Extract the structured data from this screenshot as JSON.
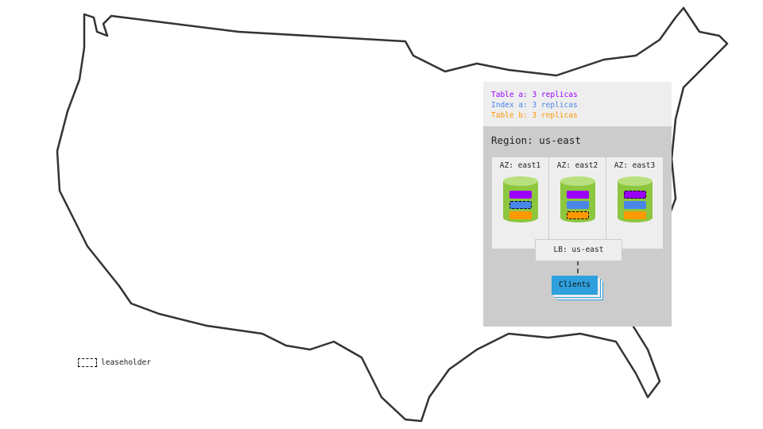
{
  "legend": {
    "table_a": "Table a: 3 replicas",
    "index_a": "Index a: 3 replicas",
    "table_b": "Table b: 3 replicas"
  },
  "colors": {
    "table_a": "#9b00ff",
    "index_a": "#4a86e8",
    "table_b": "#ff9900",
    "db": "#8dc63f",
    "clients": "#2fa0dd"
  },
  "region": {
    "label": "Region: us-east"
  },
  "azs": [
    {
      "label": "AZ: east1",
      "leaseholder": "index_a"
    },
    {
      "label": "AZ: east2",
      "leaseholder": "table_b"
    },
    {
      "label": "AZ: east3",
      "leaseholder": "table_a"
    }
  ],
  "load_balancer": {
    "label": "LB: us-east"
  },
  "clients": {
    "label": "Clients"
  },
  "key": {
    "leaseholder": "leaseholder"
  }
}
